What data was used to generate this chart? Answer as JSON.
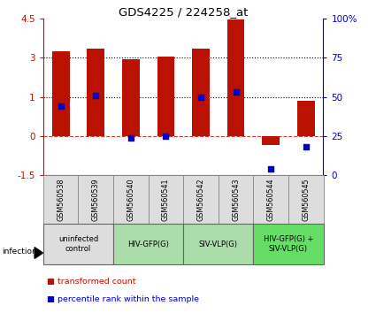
{
  "title": "GDS4225 / 224258_at",
  "samples": [
    "GSM560538",
    "GSM560539",
    "GSM560540",
    "GSM560541",
    "GSM560542",
    "GSM560543",
    "GSM560544",
    "GSM560545"
  ],
  "transformed_counts": [
    3.27,
    3.35,
    2.95,
    3.05,
    3.35,
    4.48,
    -0.35,
    1.35
  ],
  "percentile_ranks": [
    44,
    51,
    24,
    25,
    50,
    53,
    4,
    18
  ],
  "ylim_left": [
    -1.5,
    4.5
  ],
  "ylim_right": [
    0,
    100
  ],
  "hline_dotted": [
    1.5,
    3.0
  ],
  "hline_dashed": 0.0,
  "bar_color": "#bb1100",
  "dot_color": "#0000cc",
  "groups": [
    {
      "label": "uninfected\ncontrol",
      "start": 0,
      "end": 2,
      "color": "#dddddd"
    },
    {
      "label": "HIV-GFP(G)",
      "start": 2,
      "end": 4,
      "color": "#aaddaa"
    },
    {
      "label": "SIV-VLP(G)",
      "start": 4,
      "end": 6,
      "color": "#aaddaa"
    },
    {
      "label": "HIV-GFP(G) +\nSIV-VLP(G)",
      "start": 6,
      "end": 8,
      "color": "#66dd66"
    }
  ],
  "legend_items": [
    {
      "label": "transformed count",
      "color": "#bb1100"
    },
    {
      "label": "percentile rank within the sample",
      "color": "#0000cc"
    }
  ],
  "infection_label": "infection",
  "bar_color_left": "#bb1100",
  "right_axis_color": "#0000cc",
  "bar_width": 0.5,
  "yticks_left": [
    -1.5,
    0.0,
    1.5,
    3.0,
    4.5
  ],
  "yticks_right": [
    0,
    25,
    50,
    75,
    100
  ],
  "ytick_labels_right": [
    "0",
    "25",
    "50",
    "75",
    "100%"
  ]
}
